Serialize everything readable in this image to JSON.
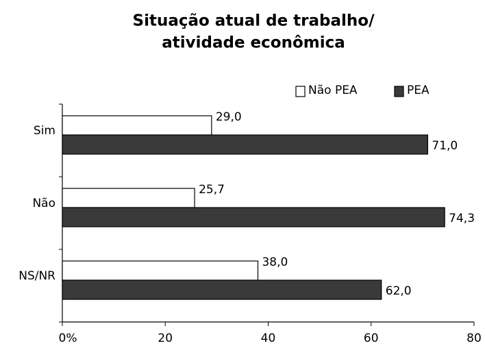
{
  "chart_data": {
    "type": "hbar",
    "title": [
      "Situação atual de trabalho/",
      "atividade econômica"
    ],
    "categories": [
      "Sim",
      "Não",
      "NS/NR"
    ],
    "series": [
      {
        "name": "Não PEA",
        "color": "#ffffff",
        "values": [
          29.0,
          25.7,
          38.0
        ],
        "value_labels": [
          "29,0",
          "25,7",
          "38,0"
        ]
      },
      {
        "name": "PEA",
        "color": "#3a3a3a",
        "values": [
          71.0,
          74.3,
          62.0
        ],
        "value_labels": [
          "71,0",
          "74,3",
          "62,0"
        ]
      }
    ],
    "xlim": [
      0,
      80
    ],
    "xticks": [
      {
        "value": 0,
        "label": "0%"
      },
      20,
      40,
      60,
      80
    ],
    "legend": "top-right"
  }
}
